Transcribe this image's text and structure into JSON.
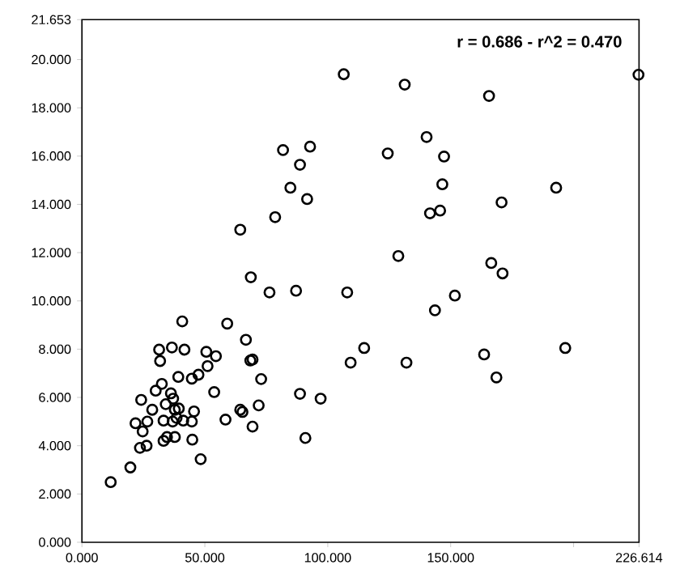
{
  "chart_data": {
    "type": "scatter",
    "marker": "circle",
    "color": "#000000",
    "annotations": [
      "r = 0.686 - r^2 = 0.470"
    ],
    "xlim": [
      0,
      226.614
    ],
    "ylim": [
      0,
      21.653
    ],
    "xticks": [
      {
        "value": 0,
        "label": "0.000"
      },
      {
        "value": 50,
        "label": "50.000"
      },
      {
        "value": 100,
        "label": "100.000"
      },
      {
        "value": 150,
        "label": "150.000"
      },
      {
        "value": 200,
        "label": null
      },
      226.614
    ],
    "yticks": [
      {
        "value": 0,
        "label": "0.000"
      },
      {
        "value": 2,
        "label": "2.000"
      },
      {
        "value": 4,
        "label": "4.000"
      },
      {
        "value": 6,
        "label": "6.000"
      },
      {
        "value": 8,
        "label": "8.000"
      },
      {
        "value": 10,
        "label": "10.000"
      },
      {
        "value": 12,
        "label": "12.000"
      },
      {
        "value": 14,
        "label": "14.000"
      },
      {
        "value": 16,
        "label": "16.000"
      },
      {
        "value": 18,
        "label": "18.000"
      },
      {
        "value": 20,
        "label": "20.000"
      },
      21.653
    ],
    "x": [
      106.5,
      131.3,
      165.6,
      226.4,
      140.2,
      81.8,
      92.8,
      124.4,
      147.3,
      88.7,
      84.8,
      91.6,
      146.6,
      192.9,
      170.7,
      141.6,
      145.7,
      78.6,
      64.4,
      128.7,
      166.5,
      171.1,
      68.7,
      76.3,
      87.1,
      107.9,
      151.7,
      143.6,
      59.1,
      66.7,
      114.8,
      196.6,
      163.6,
      109.3,
      132.0,
      68.5,
      69.4,
      72.9,
      168.6,
      88.7,
      97.1,
      71.9,
      64.4,
      65.3,
      58.4,
      69.4,
      90.9,
      11.7,
      19.7,
      23.6,
      26.3,
      21.8,
      24.7,
      24.1,
      26.6,
      28.6,
      30.0,
      32.5,
      34.1,
      33.2,
      33.2,
      34.6,
      37.8,
      36.2,
      37.1,
      37.8,
      38.5,
      39.4,
      36.9,
      41.2,
      44.7,
      45.6,
      44.9,
      48.3,
      53.8,
      39.2,
      44.7,
      47.4,
      51.1,
      50.6,
      54.5,
      31.4,
      31.8,
      36.6,
      41.7,
      40.8
    ],
    "values": [
      19.39,
      18.96,
      18.49,
      19.37,
      16.79,
      16.25,
      16.39,
      16.11,
      15.98,
      15.64,
      14.69,
      14.22,
      14.83,
      14.69,
      14.08,
      13.63,
      13.74,
      13.47,
      12.95,
      11.86,
      11.57,
      11.14,
      10.98,
      10.35,
      10.42,
      10.35,
      10.22,
      9.61,
      9.06,
      8.39,
      8.05,
      8.05,
      7.78,
      7.44,
      7.44,
      7.53,
      7.57,
      6.76,
      6.83,
      6.15,
      5.95,
      5.67,
      5.49,
      5.4,
      5.08,
      4.79,
      4.32,
      2.49,
      3.1,
      3.91,
      4.0,
      4.93,
      4.59,
      5.9,
      5.0,
      5.49,
      6.28,
      6.56,
      5.72,
      5.04,
      4.2,
      4.36,
      4.36,
      6.17,
      5.95,
      5.49,
      5.15,
      5.54,
      5.0,
      5.04,
      5.0,
      5.42,
      4.25,
      3.44,
      6.22,
      6.85,
      6.78,
      6.94,
      7.3,
      7.89,
      7.71,
      7.98,
      7.51,
      8.07,
      7.98,
      9.15
    ]
  }
}
